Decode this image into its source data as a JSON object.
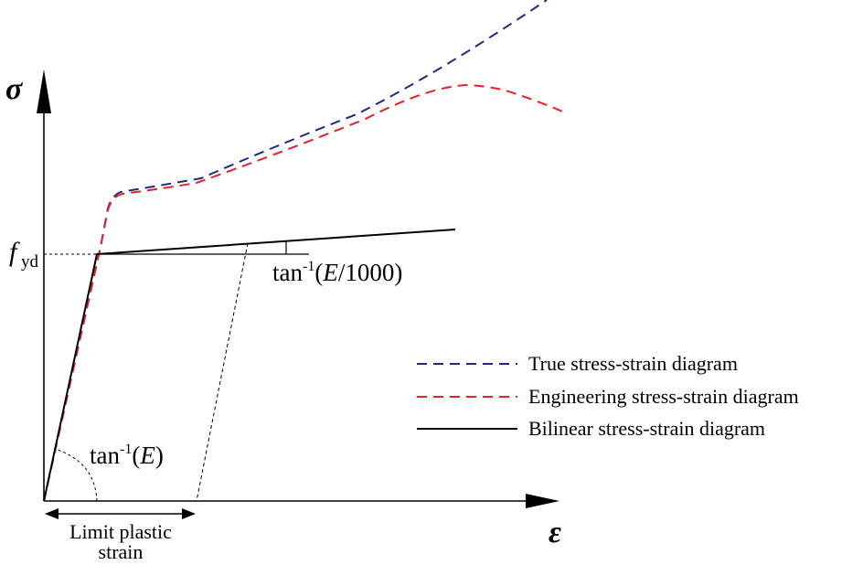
{
  "axes": {
    "y_symbol": "σ",
    "x_symbol": "ε",
    "yield_label": "f",
    "yield_subscript": "yd"
  },
  "annotations": {
    "elastic_slope": {
      "prefix": "tan",
      "exponent": "-1",
      "open": "(",
      "var": "E",
      "close": ")"
    },
    "hardening_slope": {
      "prefix": "tan",
      "exponent": "-1",
      "open": "(",
      "var": "E",
      "rest": "/1000)"
    },
    "limit_strain_line1": "Limit plastic",
    "limit_strain_line2": "strain"
  },
  "legend": {
    "items": [
      {
        "key": "true",
        "label": "True stress-strain diagram",
        "color": "#1f2a80",
        "style": "dashed"
      },
      {
        "key": "engineering",
        "label": "Engineering stress-strain diagram",
        "color": "#e8202a",
        "style": "dashed"
      },
      {
        "key": "bilinear",
        "label": "Bilinear stress-strain diagram",
        "color": "#000000",
        "style": "solid"
      }
    ]
  },
  "colors": {
    "true_curve": "#1f2a80",
    "engineering_curve": "#e8202a",
    "bilinear": "#000000",
    "axis": "#000000"
  }
}
